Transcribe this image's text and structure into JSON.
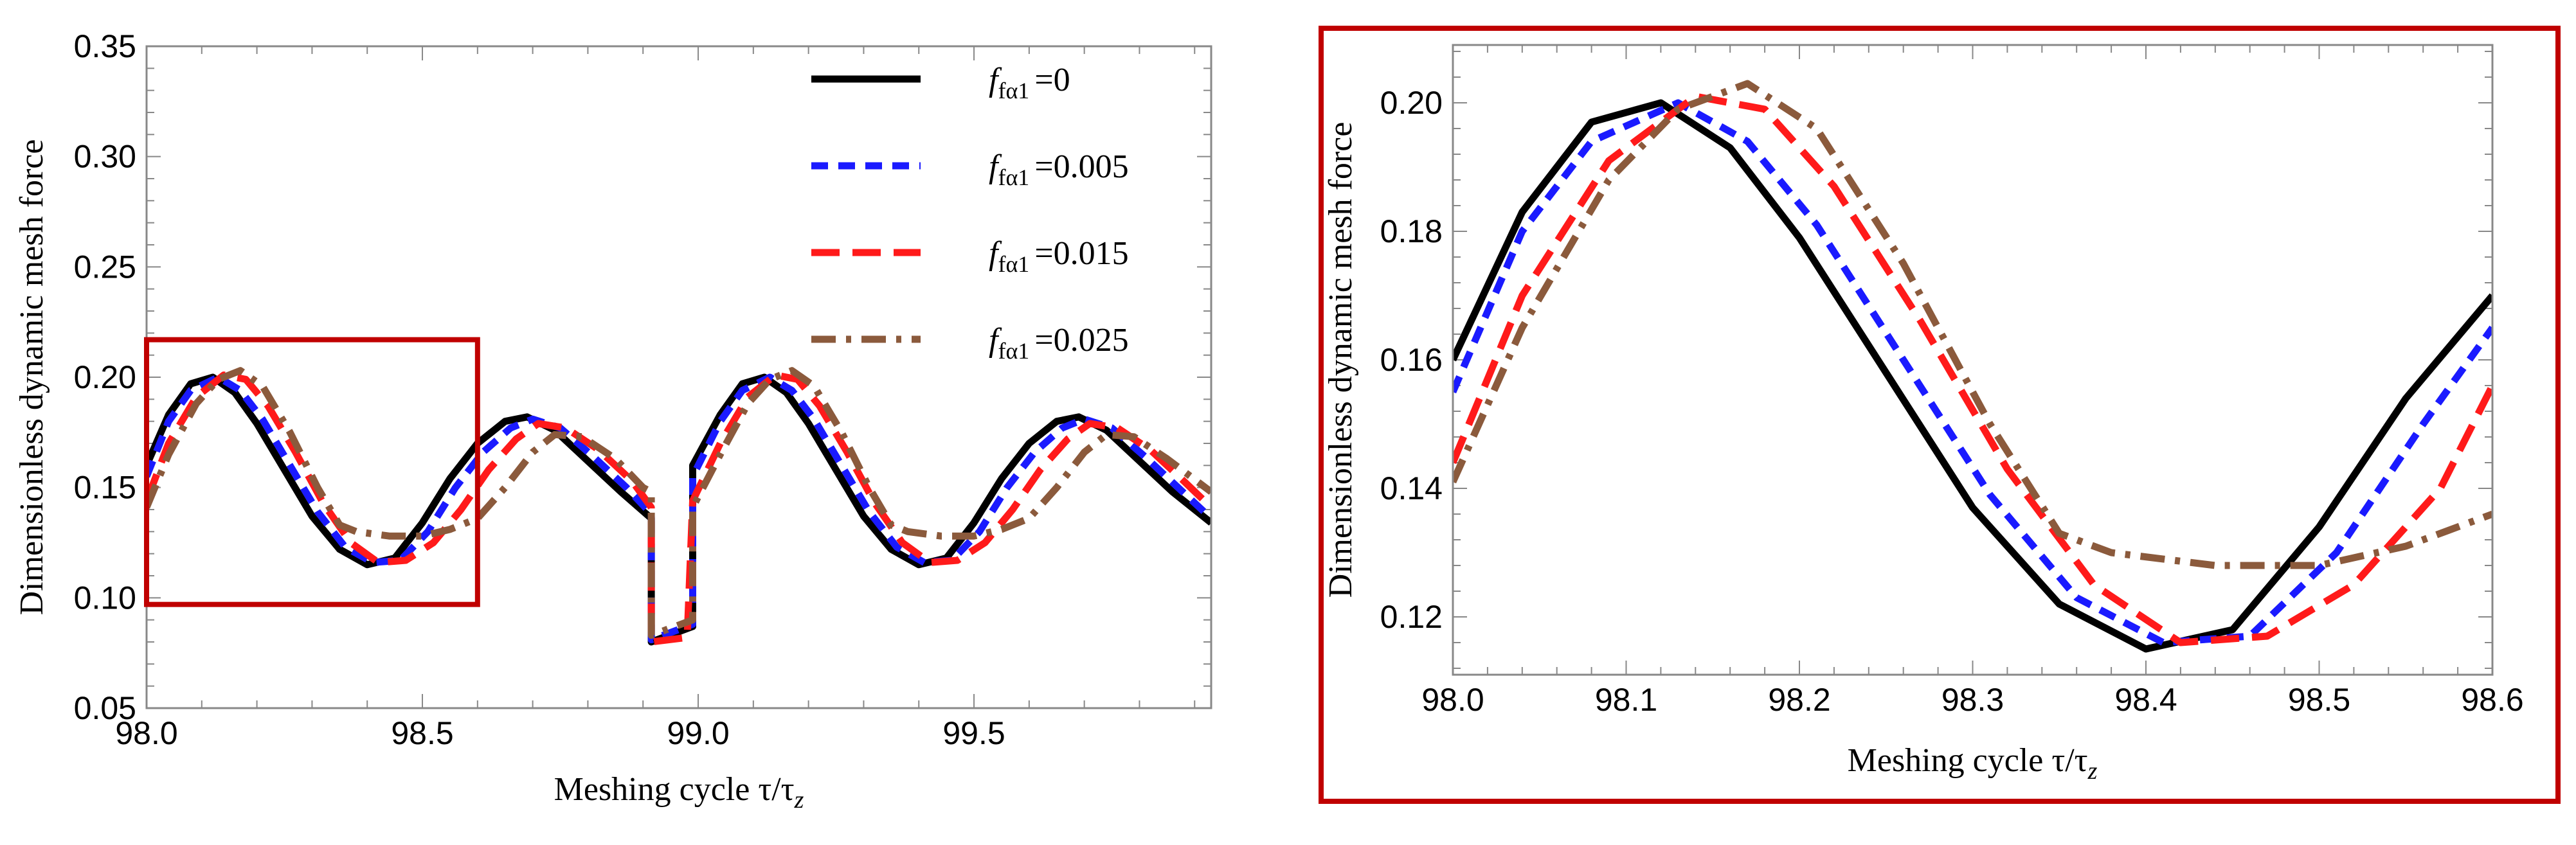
{
  "chart_data": [
    {
      "type": "line",
      "title": "",
      "xlabel": "Meshing cycle τ/τ",
      "xlabel_subscript": "z",
      "ylabel": "Dimensionless dynamic mesh force",
      "xlim": [
        98.0,
        99.93
      ],
      "ylim": [
        0.05,
        0.35
      ],
      "xticks": [
        98.0,
        98.5,
        99.0,
        99.5
      ],
      "xtick_labels": [
        "98.0",
        "98.5",
        "99.0",
        "99.5"
      ],
      "yticks": [
        0.05,
        0.1,
        0.15,
        0.2,
        0.25,
        0.3,
        0.35
      ],
      "ytick_labels": [
        "0.05",
        "0.10",
        "0.15",
        "0.20",
        "0.25",
        "0.30",
        "0.35"
      ],
      "legend": [
        {
          "prefix": "f",
          "sub": "fα1",
          "suffix": "=0",
          "color": "#000000",
          "style": "solid"
        },
        {
          "prefix": "f",
          "sub": "fα1",
          "suffix": "=0.005",
          "color": "#1a1aff",
          "style": "dashed"
        },
        {
          "prefix": "f",
          "sub": "fα1",
          "suffix": "=0.015",
          "color": "#ff1a1a",
          "style": "longdash"
        },
        {
          "prefix": "f",
          "sub": "fα1",
          "suffix": "=0.025",
          "color": "#8b5a3c",
          "style": "dashdot"
        }
      ],
      "zoom_box_x": [
        98.0,
        98.6
      ],
      "zoom_box_y": [
        0.097,
        0.217
      ],
      "series": [
        {
          "name": "f_fα1=0",
          "color": "#000000",
          "points": [
            [
              98.0,
              0.16
            ],
            [
              98.04,
              0.183
            ],
            [
              98.08,
              0.197
            ],
            [
              98.12,
              0.2
            ],
            [
              98.16,
              0.193
            ],
            [
              98.2,
              0.179
            ],
            [
              98.25,
              0.158
            ],
            [
              98.3,
              0.137
            ],
            [
              98.35,
              0.122
            ],
            [
              98.4,
              0.115
            ],
            [
              98.45,
              0.118
            ],
            [
              98.5,
              0.134
            ],
            [
              98.55,
              0.154
            ],
            [
              98.6,
              0.17
            ],
            [
              98.65,
              0.18
            ],
            [
              98.69,
              0.182
            ],
            [
              98.74,
              0.176
            ],
            [
              98.8,
              0.162
            ],
            [
              98.86,
              0.148
            ],
            [
              98.915,
              0.136
            ],
            [
              98.915,
              0.08
            ],
            [
              98.99,
              0.087
            ],
            [
              98.99,
              0.16
            ],
            [
              99.04,
              0.183
            ],
            [
              99.08,
              0.197
            ],
            [
              99.12,
              0.2
            ],
            [
              99.16,
              0.193
            ],
            [
              99.2,
              0.179
            ],
            [
              99.25,
              0.158
            ],
            [
              99.3,
              0.137
            ],
            [
              99.35,
              0.122
            ],
            [
              99.4,
              0.115
            ],
            [
              99.45,
              0.118
            ],
            [
              99.5,
              0.134
            ],
            [
              99.55,
              0.154
            ],
            [
              99.6,
              0.17
            ],
            [
              99.65,
              0.18
            ],
            [
              99.69,
              0.182
            ],
            [
              99.74,
              0.176
            ],
            [
              99.8,
              0.162
            ],
            [
              99.86,
              0.148
            ],
            [
              99.93,
              0.134
            ]
          ]
        },
        {
          "name": "f_fα1=0.005",
          "color": "#1a1aff",
          "points": [
            [
              98.0,
              0.155
            ],
            [
              98.04,
              0.18
            ],
            [
              98.08,
              0.194
            ],
            [
              98.13,
              0.2
            ],
            [
              98.17,
              0.194
            ],
            [
              98.21,
              0.181
            ],
            [
              98.26,
              0.16
            ],
            [
              98.31,
              0.139
            ],
            [
              98.36,
              0.123
            ],
            [
              98.41,
              0.116
            ],
            [
              98.46,
              0.117
            ],
            [
              98.51,
              0.13
            ],
            [
              98.56,
              0.15
            ],
            [
              98.61,
              0.166
            ],
            [
              98.66,
              0.177
            ],
            [
              98.7,
              0.181
            ],
            [
              98.75,
              0.177
            ],
            [
              98.81,
              0.164
            ],
            [
              98.87,
              0.15
            ],
            [
              98.915,
              0.138
            ],
            [
              98.915,
              0.081
            ],
            [
              98.99,
              0.088
            ],
            [
              98.99,
              0.155
            ],
            [
              99.04,
              0.18
            ],
            [
              99.08,
              0.194
            ],
            [
              99.13,
              0.2
            ],
            [
              99.17,
              0.194
            ],
            [
              99.21,
              0.181
            ],
            [
              99.26,
              0.16
            ],
            [
              99.31,
              0.139
            ],
            [
              99.36,
              0.123
            ],
            [
              99.41,
              0.116
            ],
            [
              99.46,
              0.117
            ],
            [
              99.51,
              0.13
            ],
            [
              99.56,
              0.15
            ],
            [
              99.61,
              0.166
            ],
            [
              99.66,
              0.177
            ],
            [
              99.7,
              0.181
            ],
            [
              99.75,
              0.177
            ],
            [
              99.81,
              0.164
            ],
            [
              99.87,
              0.15
            ],
            [
              99.93,
              0.136
            ]
          ]
        },
        {
          "name": "f_fα1=0.015",
          "color": "#ff1a1a",
          "points": [
            [
              98.0,
              0.144
            ],
            [
              98.04,
              0.17
            ],
            [
              98.09,
              0.191
            ],
            [
              98.14,
              0.201
            ],
            [
              98.18,
              0.199
            ],
            [
              98.22,
              0.187
            ],
            [
              98.27,
              0.166
            ],
            [
              98.32,
              0.143
            ],
            [
              98.37,
              0.125
            ],
            [
              98.42,
              0.116
            ],
            [
              98.47,
              0.117
            ],
            [
              98.52,
              0.125
            ],
            [
              98.57,
              0.14
            ],
            [
              98.62,
              0.158
            ],
            [
              98.67,
              0.172
            ],
            [
              98.71,
              0.179
            ],
            [
              98.76,
              0.177
            ],
            [
              98.82,
              0.167
            ],
            [
              98.88,
              0.153
            ],
            [
              98.915,
              0.141
            ],
            [
              98.915,
              0.08
            ],
            [
              98.98,
              0.082
            ],
            [
              98.99,
              0.144
            ],
            [
              99.04,
              0.17
            ],
            [
              99.09,
              0.191
            ],
            [
              99.14,
              0.201
            ],
            [
              99.18,
              0.199
            ],
            [
              99.22,
              0.187
            ],
            [
              99.27,
              0.166
            ],
            [
              99.32,
              0.143
            ],
            [
              99.37,
              0.125
            ],
            [
              99.42,
              0.116
            ],
            [
              99.47,
              0.117
            ],
            [
              99.52,
              0.125
            ],
            [
              99.57,
              0.14
            ],
            [
              99.62,
              0.158
            ],
            [
              99.67,
              0.172
            ],
            [
              99.71,
              0.179
            ],
            [
              99.76,
              0.177
            ],
            [
              99.82,
              0.167
            ],
            [
              99.88,
              0.153
            ],
            [
              99.93,
              0.141
            ]
          ]
        },
        {
          "name": "f_fα1=0.025",
          "color": "#8b5a3c",
          "points": [
            [
              98.0,
              0.141
            ],
            [
              98.04,
              0.165
            ],
            [
              98.09,
              0.188
            ],
            [
              98.13,
              0.199
            ],
            [
              98.17,
              0.203
            ],
            [
              98.21,
              0.196
            ],
            [
              98.26,
              0.175
            ],
            [
              98.31,
              0.15
            ],
            [
              98.35,
              0.133
            ],
            [
              98.38,
              0.13
            ],
            [
              98.44,
              0.128
            ],
            [
              98.5,
              0.128
            ],
            [
              98.55,
              0.131
            ],
            [
              98.6,
              0.136
            ],
            [
              98.65,
              0.15
            ],
            [
              98.7,
              0.166
            ],
            [
              98.74,
              0.174
            ],
            [
              98.79,
              0.173
            ],
            [
              98.85,
              0.163
            ],
            [
              98.9,
              0.15
            ],
            [
              98.915,
              0.148
            ],
            [
              98.915,
              0.083
            ],
            [
              98.99,
              0.09
            ],
            [
              98.99,
              0.141
            ],
            [
              99.04,
              0.165
            ],
            [
              99.09,
              0.188
            ],
            [
              99.13,
              0.199
            ],
            [
              99.17,
              0.203
            ],
            [
              99.21,
              0.196
            ],
            [
              99.26,
              0.175
            ],
            [
              99.31,
              0.15
            ],
            [
              99.35,
              0.133
            ],
            [
              99.38,
              0.13
            ],
            [
              99.44,
              0.128
            ],
            [
              99.5,
              0.128
            ],
            [
              99.55,
              0.131
            ],
            [
              99.6,
              0.136
            ],
            [
              99.65,
              0.15
            ],
            [
              99.7,
              0.166
            ],
            [
              99.74,
              0.174
            ],
            [
              99.79,
              0.173
            ],
            [
              99.85,
              0.163
            ],
            [
              99.93,
              0.148
            ]
          ]
        }
      ]
    },
    {
      "type": "line",
      "title": "",
      "xlabel": "Meshing cycle τ/τ",
      "xlabel_subscript": "z",
      "ylabel": "Dimensionless dynamic mesh force",
      "xlim": [
        98.0,
        98.6
      ],
      "ylim": [
        0.111,
        0.209
      ],
      "xticks": [
        98.0,
        98.1,
        98.2,
        98.3,
        98.4,
        98.5,
        98.6
      ],
      "xtick_labels": [
        "98.0",
        "98.1",
        "98.2",
        "98.3",
        "98.4",
        "98.5",
        "98.6"
      ],
      "yticks": [
        0.12,
        0.14,
        0.16,
        0.18,
        0.2
      ],
      "ytick_labels": [
        "0.12",
        "0.14",
        "0.16",
        "0.18",
        "0.20"
      ],
      "series": [
        {
          "name": "f_fα1=0",
          "color": "#000000",
          "points": [
            [
              98.0,
              0.16
            ],
            [
              98.04,
              0.183
            ],
            [
              98.08,
              0.197
            ],
            [
              98.12,
              0.2
            ],
            [
              98.16,
              0.193
            ],
            [
              98.2,
              0.179
            ],
            [
              98.25,
              0.158
            ],
            [
              98.3,
              0.137
            ],
            [
              98.35,
              0.122
            ],
            [
              98.4,
              0.115
            ],
            [
              98.45,
              0.118
            ],
            [
              98.5,
              0.134
            ],
            [
              98.55,
              0.154
            ],
            [
              98.6,
              0.17
            ]
          ]
        },
        {
          "name": "f_fα1=0.005",
          "color": "#1a1aff",
          "points": [
            [
              98.0,
              0.155
            ],
            [
              98.04,
              0.18
            ],
            [
              98.08,
              0.194
            ],
            [
              98.13,
              0.2
            ],
            [
              98.17,
              0.194
            ],
            [
              98.21,
              0.181
            ],
            [
              98.26,
              0.16
            ],
            [
              98.31,
              0.139
            ],
            [
              98.36,
              0.123
            ],
            [
              98.41,
              0.116
            ],
            [
              98.46,
              0.117
            ],
            [
              98.51,
              0.13
            ],
            [
              98.56,
              0.15
            ],
            [
              98.6,
              0.165
            ]
          ]
        },
        {
          "name": "f_fα1=0.015",
          "color": "#ff1a1a",
          "points": [
            [
              98.0,
              0.144
            ],
            [
              98.04,
              0.17
            ],
            [
              98.09,
              0.191
            ],
            [
              98.14,
              0.201
            ],
            [
              98.18,
              0.199
            ],
            [
              98.22,
              0.187
            ],
            [
              98.27,
              0.166
            ],
            [
              98.32,
              0.143
            ],
            [
              98.37,
              0.125
            ],
            [
              98.42,
              0.116
            ],
            [
              98.47,
              0.117
            ],
            [
              98.52,
              0.125
            ],
            [
              98.57,
              0.14
            ],
            [
              98.6,
              0.156
            ]
          ]
        },
        {
          "name": "f_fα1=0.025",
          "color": "#8b5a3c",
          "points": [
            [
              98.0,
              0.141
            ],
            [
              98.04,
              0.165
            ],
            [
              98.09,
              0.188
            ],
            [
              98.13,
              0.199
            ],
            [
              98.17,
              0.203
            ],
            [
              98.21,
              0.196
            ],
            [
              98.26,
              0.175
            ],
            [
              98.31,
              0.15
            ],
            [
              98.35,
              0.133
            ],
            [
              98.38,
              0.13
            ],
            [
              98.44,
              0.128
            ],
            [
              98.5,
              0.128
            ],
            [
              98.55,
              0.131
            ],
            [
              98.6,
              0.136
            ]
          ]
        }
      ]
    }
  ]
}
